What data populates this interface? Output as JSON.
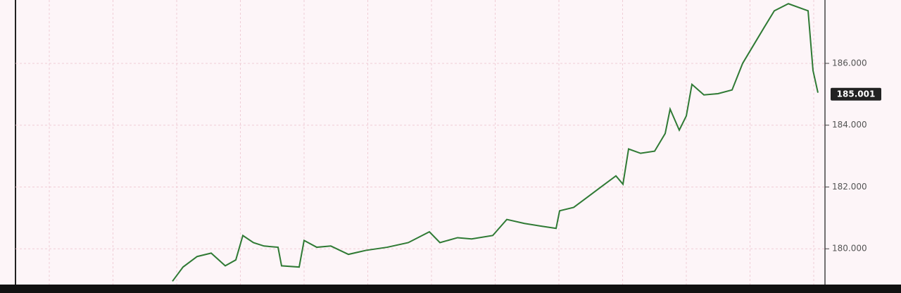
{
  "chart_data": {
    "type": "line",
    "categories": [
      null,
      null,
      null,
      null,
      null,
      null,
      null,
      null,
      null,
      null,
      null,
      null,
      null,
      null,
      null,
      null,
      null,
      null,
      null,
      null,
      null,
      null,
      null,
      null,
      null,
      null,
      null,
      null,
      null,
      null,
      null,
      null,
      null,
      null,
      null,
      null,
      null,
      null,
      null,
      null,
      null,
      null,
      null,
      null,
      null,
      null,
      null,
      null,
      null,
      null,
      null,
      null,
      null
    ],
    "x": [
      245,
      260,
      280,
      300,
      320,
      335,
      345,
      360,
      375,
      395,
      400,
      425,
      432,
      450,
      470,
      495,
      520,
      550,
      580,
      610,
      625,
      650,
      670,
      700,
      720,
      745,
      770,
      790,
      795,
      815,
      835,
      855,
      875,
      885,
      893,
      910,
      930,
      945,
      952,
      965,
      975,
      983,
      1000,
      1020,
      1040,
      1055,
      1070,
      1085,
      1100,
      1120,
      1148,
      1155,
      1162
    ],
    "values": [
      178.95,
      179.41,
      179.75,
      179.86,
      179.45,
      179.64,
      180.43,
      180.2,
      180.09,
      180.05,
      179.45,
      179.41,
      180.27,
      180.05,
      180.09,
      179.82,
      179.95,
      180.05,
      180.2,
      180.55,
      180.2,
      180.36,
      180.32,
      180.43,
      180.95,
      180.82,
      180.73,
      180.66,
      181.23,
      181.34,
      181.68,
      182.02,
      182.36,
      182.09,
      183.23,
      183.09,
      183.16,
      183.73,
      184.52,
      183.84,
      184.3,
      185.32,
      184.98,
      185.02,
      185.14,
      186.0,
      186.57,
      187.14,
      187.7,
      187.93,
      187.7,
      185.77,
      185.05
    ],
    "color": "#2f7a34",
    "xlim": [
      22,
      1172
    ],
    "ylim": [
      178.57,
      188.05
    ],
    "yticks": [
      {
        "value": 180,
        "label": "180.000"
      },
      {
        "value": 182,
        "label": "182.000"
      },
      {
        "value": 184,
        "label": "184.000"
      },
      {
        "value": 186,
        "label": "186.000"
      }
    ],
    "grid": true,
    "last_price": 185.001
  }
}
